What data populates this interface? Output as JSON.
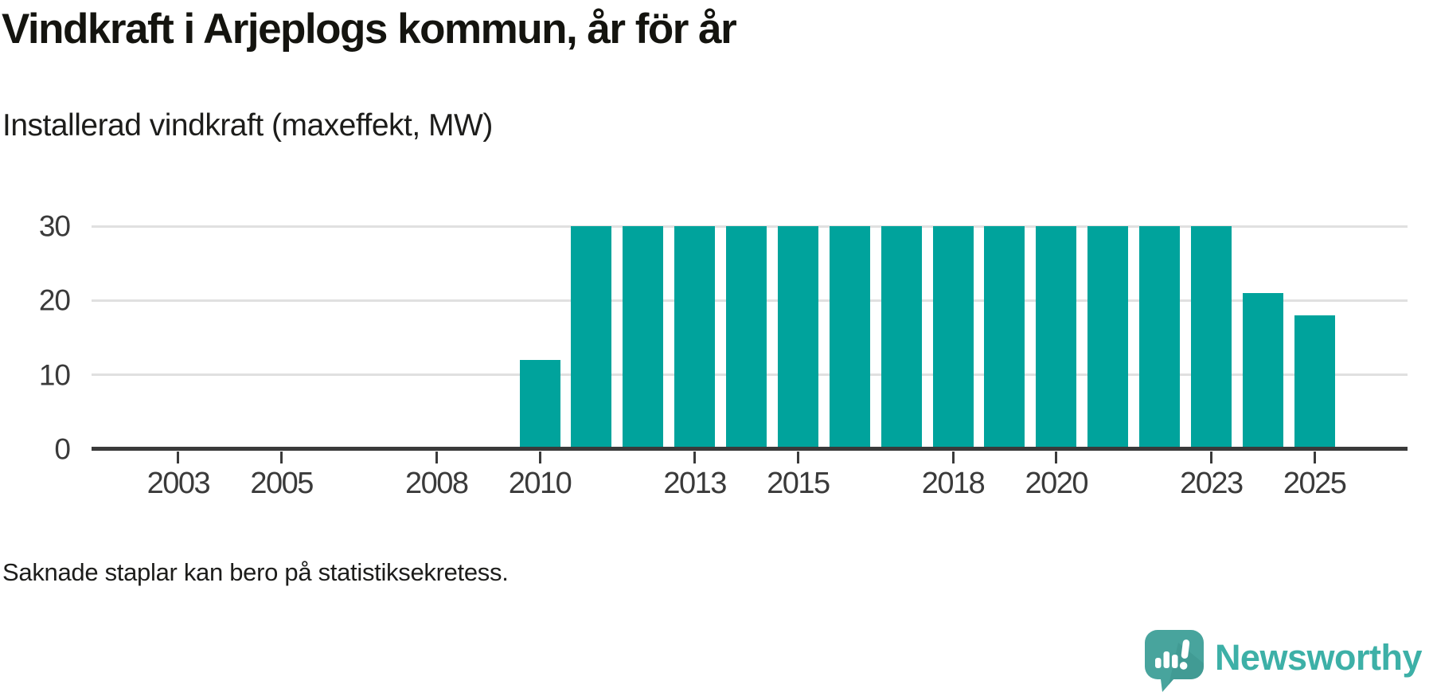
{
  "header": {
    "title": "Vindkraft i Arjeplogs kommun, år för år",
    "subtitle": "Installerad vindkraft (maxeffekt, MW)"
  },
  "chart_data": {
    "type": "bar",
    "title": "Vindkraft i Arjeplogs kommun, år för år",
    "subtitle": "Installerad vindkraft (maxeffekt, MW)",
    "ylabel": "Installerad vindkraft (maxeffekt, MW)",
    "xlabel": "",
    "unit": "MW",
    "x_domain": [
      2002,
      2026
    ],
    "ylim": [
      0,
      30
    ],
    "y_ticks": [
      0,
      10,
      20,
      30
    ],
    "x_tick_years": [
      2003,
      2005,
      2008,
      2010,
      2013,
      2015,
      2018,
      2020,
      2023,
      2025
    ],
    "grid": "horizontal-only",
    "legend": "none",
    "bars": [
      {
        "year": 2010,
        "value": 12
      },
      {
        "year": 2011,
        "value": 30
      },
      {
        "year": 2012,
        "value": 30
      },
      {
        "year": 2013,
        "value": 30
      },
      {
        "year": 2014,
        "value": 30
      },
      {
        "year": 2015,
        "value": 30
      },
      {
        "year": 2016,
        "value": 30
      },
      {
        "year": 2017,
        "value": 30
      },
      {
        "year": 2018,
        "value": 30
      },
      {
        "year": 2019,
        "value": 30
      },
      {
        "year": 2020,
        "value": 30
      },
      {
        "year": 2021,
        "value": 30
      },
      {
        "year": 2022,
        "value": 30
      },
      {
        "year": 2023,
        "value": 30
      },
      {
        "year": 2024,
        "value": 21
      },
      {
        "year": 2025,
        "value": 18
      }
    ],
    "missing_years": [
      2002,
      2003,
      2004,
      2005,
      2006,
      2007,
      2008,
      2009,
      2026
    ]
  },
  "footer": {
    "note": "Saknade staplar kan bero på statistiksekretess.",
    "brand": "Newsworthy"
  },
  "colors": {
    "bar": "#00a39c",
    "axis": "#3a3a3a",
    "grid": "#e0e0e0",
    "title_text": "#14140f",
    "body_text": "#1d1d1b",
    "logo_bubble": "#48a49d",
    "logo_shade": "#3c948d",
    "logo_text": "#3db0a7"
  }
}
